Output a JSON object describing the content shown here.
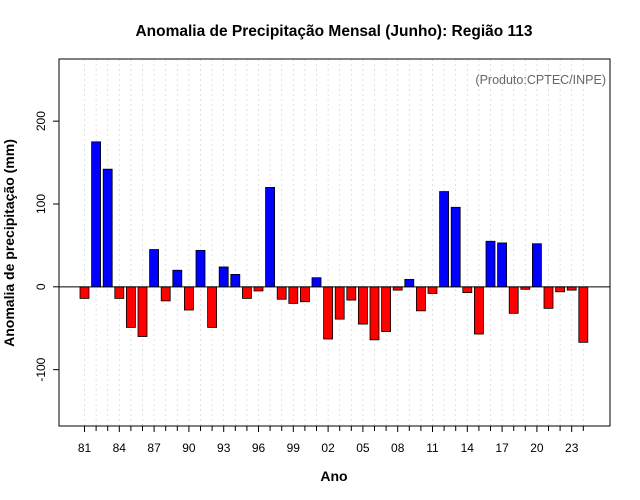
{
  "chart_data": {
    "type": "bar",
    "title": "Anomalia de Precipitação Mensal (Junho): Região 113",
    "xlabel": "Ano",
    "ylabel": "Anomalia de precipitação (mm)",
    "credit": "(Produto:CPTEC/INPE)",
    "ylim": [
      -168,
      275
    ],
    "yticks": [
      -100,
      0,
      100,
      200
    ],
    "xtick_labels": [
      "81",
      "84",
      "87",
      "90",
      "93",
      "96",
      "99",
      "02",
      "05",
      "08",
      "11",
      "14",
      "17",
      "20",
      "23"
    ],
    "xtick_every": 3,
    "grid": true,
    "colors": {
      "positive": "#0000ff",
      "negative": "#ff0000"
    },
    "categories": [
      "1981",
      "1982",
      "1983",
      "1984",
      "1985",
      "1986",
      "1987",
      "1988",
      "1989",
      "1990",
      "1991",
      "1992",
      "1993",
      "1994",
      "1995",
      "1996",
      "1997",
      "1998",
      "1999",
      "2000",
      "2001",
      "2002",
      "2003",
      "2004",
      "2005",
      "2006",
      "2007",
      "2008",
      "2009",
      "2010",
      "2011",
      "2012",
      "2013",
      "2014",
      "2015",
      "2016",
      "2017",
      "2018",
      "2019",
      "2020",
      "2021",
      "2022",
      "2023",
      "2024"
    ],
    "values": [
      -14,
      175,
      142,
      -14,
      -49,
      -60,
      45,
      -17,
      20,
      -28,
      44,
      -49,
      24,
      15,
      -14,
      -5,
      120,
      -15,
      -20,
      -18,
      11,
      -63,
      -39,
      -16,
      -45,
      -64,
      -54,
      -4,
      9,
      -29,
      -8,
      115,
      96,
      -7,
      -57,
      55,
      53,
      -32,
      -3,
      52,
      -26,
      -6,
      -4,
      -67
    ]
  }
}
